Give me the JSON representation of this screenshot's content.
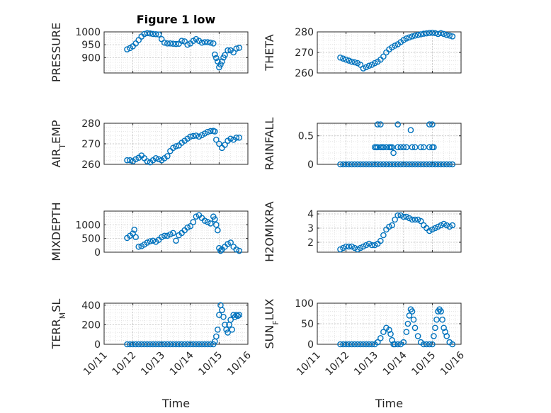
{
  "figure": {
    "title": "Figure 1 low"
  },
  "x_axis": {
    "label": "Time",
    "ticks": [
      {
        "value": 11,
        "label": "10/11"
      },
      {
        "value": 12,
        "label": "10/12"
      },
      {
        "value": 13,
        "label": "10/13"
      },
      {
        "value": 14,
        "label": "10/14"
      },
      {
        "value": 15,
        "label": "10/15"
      },
      {
        "value": 16,
        "label": "10/16"
      }
    ]
  },
  "chart_data": [
    {
      "type": "scatter",
      "title": "Figure 1 low",
      "ylabel": "PRESSURE",
      "xlim": [
        11,
        16
      ],
      "ylim": [
        840,
        1000
      ],
      "yticks": [
        900,
        950,
        1000
      ],
      "grid": true,
      "x": [
        11.8,
        11.9,
        12.0,
        12.1,
        12.2,
        12.3,
        12.4,
        12.5,
        12.6,
        12.7,
        12.8,
        12.9,
        13.0,
        13.1,
        13.2,
        13.3,
        13.4,
        13.5,
        13.6,
        13.7,
        13.8,
        13.9,
        14.0,
        14.1,
        14.2,
        14.3,
        14.4,
        14.5,
        14.6,
        14.7,
        14.8,
        14.85,
        14.9,
        14.95,
        15.0,
        15.05,
        15.1,
        15.15,
        15.2,
        15.3,
        15.4,
        15.5,
        15.6,
        15.7
      ],
      "y": [
        932,
        937,
        944,
        955,
        968,
        982,
        992,
        995,
        994,
        992,
        991,
        990,
        972,
        958,
        955,
        955,
        954,
        953,
        954,
        965,
        963,
        950,
        955,
        965,
        972,
        965,
        958,
        960,
        960,
        958,
        955,
        912,
        898,
        885,
        862,
        873,
        885,
        900,
        910,
        928,
        928,
        920,
        935,
        938
      ]
    },
    {
      "type": "scatter",
      "ylabel": "THETA",
      "xlim": [
        11,
        16
      ],
      "ylim": [
        260,
        280
      ],
      "yticks": [
        260,
        270,
        280
      ],
      "grid": true,
      "x": [
        11.8,
        11.9,
        12.0,
        12.1,
        12.2,
        12.3,
        12.4,
        12.5,
        12.6,
        12.7,
        12.8,
        12.9,
        13.0,
        13.1,
        13.2,
        13.3,
        13.4,
        13.5,
        13.6,
        13.7,
        13.8,
        13.9,
        14.0,
        14.1,
        14.2,
        14.3,
        14.4,
        14.5,
        14.6,
        14.7,
        14.8,
        14.9,
        15.0,
        15.1,
        15.2,
        15.3,
        15.4,
        15.5,
        15.6,
        15.7
      ],
      "y": [
        267.5,
        267.0,
        266.5,
        266.0,
        265.5,
        265.2,
        264.8,
        264.0,
        262.2,
        262.8,
        263.5,
        264.0,
        264.8,
        265.5,
        266.5,
        268.0,
        270.0,
        271.5,
        272.5,
        273.3,
        274.0,
        275.0,
        276.0,
        276.8,
        277.3,
        277.8,
        278.2,
        278.5,
        278.8,
        279.1,
        279.3,
        279.5,
        279.6,
        279.4,
        279.0,
        279.4,
        279.0,
        278.5,
        278.2,
        277.8
      ]
    },
    {
      "type": "scatter",
      "ylabel": "AIR_TEMP",
      "xlim": [
        11,
        16
      ],
      "ylim": [
        260,
        280
      ],
      "yticks": [
        260,
        270,
        280
      ],
      "grid": true,
      "x": [
        11.8,
        11.9,
        12.0,
        12.1,
        12.2,
        12.3,
        12.4,
        12.5,
        12.6,
        12.7,
        12.8,
        12.9,
        13.0,
        13.1,
        13.2,
        13.3,
        13.4,
        13.5,
        13.6,
        13.7,
        13.8,
        13.9,
        14.0,
        14.1,
        14.2,
        14.3,
        14.4,
        14.5,
        14.6,
        14.7,
        14.8,
        14.85,
        14.9,
        15.0,
        15.1,
        15.2,
        15.3,
        15.4,
        15.5,
        15.6,
        15.7
      ],
      "y": [
        262.0,
        262.0,
        261.5,
        262.5,
        263.2,
        264.3,
        263.0,
        261.5,
        261.0,
        262.0,
        263.0,
        262.5,
        262.0,
        263.0,
        264.0,
        266.5,
        268.0,
        268.8,
        269.2,
        270.5,
        271.5,
        272.5,
        273.5,
        273.8,
        274.0,
        273.5,
        274.2,
        275.0,
        275.8,
        276.2,
        276.3,
        276.0,
        272.0,
        270.0,
        268.0,
        269.5,
        271.5,
        272.5,
        272.0,
        273.0,
        273.0
      ]
    },
    {
      "type": "scatter",
      "ylabel": "RAINFALL",
      "xlim": [
        11,
        16
      ],
      "ylim": [
        0,
        0.72
      ],
      "yticks": [
        0,
        0.5
      ],
      "grid": true,
      "x": [
        11.8,
        11.9,
        12.0,
        12.1,
        12.2,
        12.3,
        12.4,
        12.5,
        12.6,
        12.7,
        12.8,
        12.9,
        13.0,
        13.1,
        13.2,
        13.3,
        13.4,
        13.5,
        13.6,
        13.7,
        13.8,
        13.9,
        14.0,
        14.1,
        14.2,
        14.3,
        14.4,
        14.5,
        14.6,
        14.7,
        14.8,
        14.9,
        15.0,
        15.1,
        15.2,
        15.3,
        15.4,
        15.5,
        15.6,
        15.7,
        13.0,
        13.05,
        13.1,
        13.2,
        13.25,
        13.3,
        13.4,
        13.5,
        13.55,
        13.6,
        13.8,
        13.9,
        14.0,
        14.1,
        14.3,
        14.4,
        14.6,
        14.7,
        14.9,
        15.0,
        15.05,
        13.1,
        13.2,
        13.8,
        14.9,
        15.0,
        13.65,
        14.25
      ],
      "y": [
        0,
        0,
        0,
        0,
        0,
        0,
        0,
        0,
        0,
        0,
        0,
        0,
        0,
        0,
        0,
        0,
        0,
        0,
        0,
        0,
        0,
        0,
        0,
        0,
        0,
        0,
        0,
        0,
        0,
        0,
        0,
        0,
        0,
        0,
        0,
        0,
        0,
        0,
        0,
        0,
        0.3,
        0.3,
        0.3,
        0.3,
        0.3,
        0.3,
        0.3,
        0.3,
        0.3,
        0.3,
        0.3,
        0.3,
        0.3,
        0.3,
        0.3,
        0.3,
        0.3,
        0.3,
        0.3,
        0.3,
        0.3,
        0.7,
        0.7,
        0.7,
        0.7,
        0.7,
        0.2,
        0.6
      ]
    },
    {
      "type": "scatter",
      "ylabel": "MIXDEPTH",
      "xlim": [
        11,
        16
      ],
      "ylim": [
        0,
        1500
      ],
      "yticks": [
        0,
        500,
        1000
      ],
      "grid": true,
      "x": [
        11.8,
        11.9,
        12.0,
        12.05,
        12.1,
        12.2,
        12.3,
        12.4,
        12.5,
        12.6,
        12.7,
        12.8,
        12.9,
        13.0,
        13.1,
        13.2,
        13.3,
        13.4,
        13.5,
        13.6,
        13.7,
        13.8,
        13.9,
        14.0,
        14.1,
        14.2,
        14.3,
        14.4,
        14.5,
        14.6,
        14.7,
        14.8,
        14.85,
        14.9,
        14.95,
        15.0,
        15.05,
        15.1,
        15.2,
        15.3,
        15.4,
        15.5,
        15.6,
        15.7
      ],
      "y": [
        520,
        600,
        680,
        820,
        550,
        200,
        220,
        280,
        350,
        400,
        420,
        380,
        450,
        550,
        600,
        600,
        650,
        700,
        420,
        620,
        700,
        800,
        900,
        950,
        1100,
        1300,
        1350,
        1250,
        1150,
        1100,
        1050,
        1300,
        1200,
        1000,
        800,
        150,
        50,
        100,
        200,
        300,
        350,
        200,
        100,
        50
      ]
    },
    {
      "type": "scatter",
      "ylabel": "H2OMIXRA",
      "xlim": [
        11,
        16
      ],
      "ylim": [
        1.3,
        4.2
      ],
      "yticks": [
        2,
        3,
        4
      ],
      "grid": true,
      "x": [
        11.8,
        11.9,
        12.0,
        12.1,
        12.2,
        12.3,
        12.4,
        12.5,
        12.6,
        12.7,
        12.8,
        12.9,
        13.0,
        13.1,
        13.2,
        13.3,
        13.4,
        13.5,
        13.6,
        13.7,
        13.8,
        13.9,
        14.0,
        14.1,
        14.2,
        14.3,
        14.4,
        14.5,
        14.6,
        14.7,
        14.8,
        14.9,
        15.0,
        15.1,
        15.2,
        15.3,
        15.4,
        15.5,
        15.6,
        15.7
      ],
      "y": [
        1.5,
        1.6,
        1.7,
        1.7,
        1.7,
        1.6,
        1.5,
        1.6,
        1.7,
        1.8,
        1.9,
        1.8,
        1.8,
        1.9,
        2.1,
        2.5,
        2.9,
        3.1,
        3.2,
        3.6,
        3.9,
        3.9,
        3.8,
        3.8,
        3.7,
        3.6,
        3.6,
        3.6,
        3.5,
        3.2,
        3.0,
        2.8,
        2.9,
        3.0,
        3.1,
        3.2,
        3.3,
        3.2,
        3.1,
        3.2
      ]
    },
    {
      "type": "scatter",
      "ylabel": "TERR_MSL",
      "xlim": [
        11,
        16
      ],
      "ylim": [
        0,
        420
      ],
      "yticks": [
        0,
        200,
        400
      ],
      "grid": true,
      "x": [
        11.8,
        11.9,
        12.0,
        12.1,
        12.2,
        12.3,
        12.4,
        12.5,
        12.6,
        12.7,
        12.8,
        12.9,
        13.0,
        13.1,
        13.2,
        13.3,
        13.4,
        13.5,
        13.6,
        13.7,
        13.8,
        13.9,
        14.0,
        14.1,
        14.2,
        14.3,
        14.4,
        14.5,
        14.6,
        14.7,
        14.8,
        14.85,
        14.9,
        14.95,
        15.0,
        15.05,
        15.1,
        15.15,
        15.2,
        15.25,
        15.3,
        15.35,
        15.4,
        15.45,
        15.5,
        15.55,
        15.6,
        15.65,
        15.7
      ],
      "y": [
        0,
        0,
        0,
        0,
        0,
        0,
        0,
        0,
        0,
        0,
        0,
        0,
        0,
        0,
        0,
        0,
        0,
        0,
        0,
        0,
        0,
        0,
        0,
        0,
        0,
        0,
        0,
        0,
        0,
        0,
        0,
        30,
        80,
        150,
        300,
        400,
        350,
        280,
        200,
        150,
        120,
        200,
        250,
        150,
        300,
        280,
        300,
        290,
        300
      ]
    },
    {
      "type": "scatter",
      "ylabel": "SUN_FLUX",
      "xlim": [
        11,
        16
      ],
      "ylim": [
        0,
        100
      ],
      "yticks": [
        0,
        50,
        100
      ],
      "grid": true,
      "x": [
        11.8,
        11.9,
        12.0,
        12.1,
        12.2,
        12.3,
        12.4,
        12.5,
        12.6,
        12.7,
        12.8,
        12.9,
        13.0,
        13.1,
        13.2,
        13.3,
        13.4,
        13.5,
        13.55,
        13.6,
        13.65,
        13.7,
        13.8,
        13.9,
        14.0,
        14.1,
        14.15,
        14.2,
        14.25,
        14.3,
        14.35,
        14.4,
        14.5,
        14.6,
        14.7,
        14.8,
        14.9,
        15.0,
        15.05,
        15.1,
        15.15,
        15.2,
        15.25,
        15.3,
        15.35,
        15.4,
        15.45,
        15.5,
        15.6,
        15.7
      ],
      "y": [
        0,
        0,
        0,
        0,
        0,
        0,
        0,
        0,
        0,
        0,
        0,
        0,
        0,
        5,
        15,
        30,
        40,
        35,
        25,
        10,
        0,
        0,
        0,
        0,
        5,
        30,
        50,
        70,
        85,
        80,
        60,
        40,
        20,
        5,
        0,
        0,
        0,
        0,
        20,
        40,
        60,
        80,
        85,
        80,
        60,
        40,
        30,
        20,
        5,
        0
      ]
    }
  ]
}
